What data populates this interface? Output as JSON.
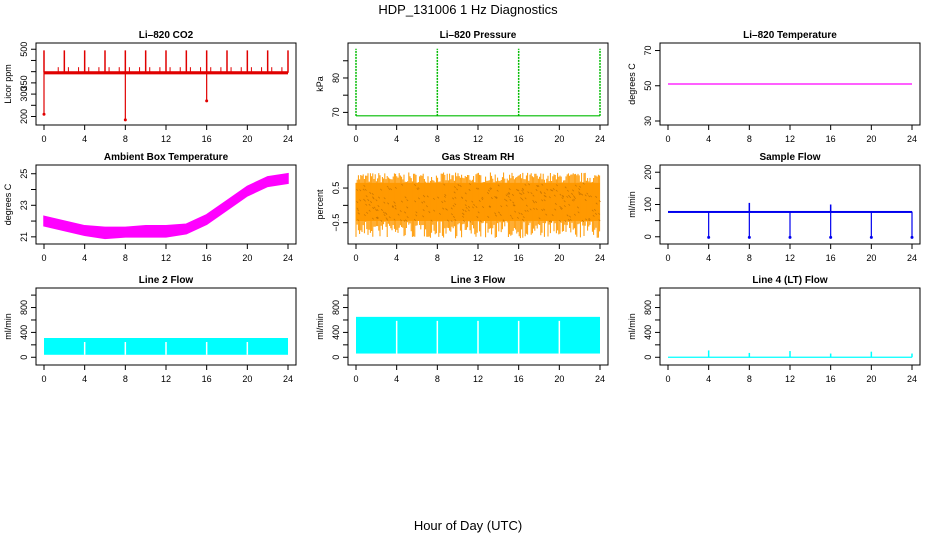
{
  "title": "HDP_131006  1 Hz Diagnostics",
  "xlabel": "Hour of Day (UTC)",
  "chart_data": [
    {
      "type": "line",
      "title": "Li–820 CO2",
      "ylabel": "Licor ppm",
      "xlim": [
        0,
        24
      ],
      "ylim": [
        180,
        510
      ],
      "xticks": [
        0,
        4,
        8,
        12,
        16,
        20,
        24
      ],
      "yticks": [
        200,
        250,
        300,
        350,
        400,
        450,
        500
      ],
      "ytick_labels": [
        "200",
        "",
        "300",
        "350",
        "",
        "",
        "500"
      ],
      "color": "#e00000",
      "baseline": 395,
      "noise": 14,
      "spikes_up": [
        0,
        2,
        4,
        6,
        8,
        10,
        12,
        14,
        16,
        18,
        20,
        22,
        24
      ],
      "spike_up_value": 495,
      "spikes_down": [
        [
          0,
          210
        ],
        [
          8,
          185
        ],
        [
          16,
          270
        ]
      ],
      "grid": false
    },
    {
      "type": "line",
      "title": "Li–820 Pressure",
      "ylabel": "kPa",
      "xlim": [
        0,
        24
      ],
      "ylim": [
        67.5,
        89
      ],
      "xticks": [
        0,
        4,
        8,
        12,
        16,
        20,
        24
      ],
      "yticks": [
        70,
        75,
        80,
        85
      ],
      "ytick_labels": [
        "70",
        "",
        "80",
        ""
      ],
      "color": "#00bb00",
      "baseline": 69.0,
      "spikes_up": [
        0,
        8,
        16,
        24
      ],
      "spike_up_value": 88.5,
      "grid": false
    },
    {
      "type": "line",
      "title": "Li–820 Temperature",
      "ylabel": "degrees C",
      "xlim": [
        0,
        24
      ],
      "ylim": [
        30,
        72
      ],
      "xticks": [
        0,
        4,
        8,
        12,
        16,
        20,
        24
      ],
      "yticks": [
        30,
        50,
        70
      ],
      "ytick_labels": [
        "30",
        "50",
        "70"
      ],
      "color": "#ff00ff",
      "baseline": 51,
      "grid": false
    },
    {
      "type": "area",
      "title": "Ambient Box Temperature",
      "ylabel": "degrees C",
      "xlim": [
        0,
        24
      ],
      "ylim": [
        20.8,
        25.3
      ],
      "xticks": [
        0,
        4,
        8,
        12,
        16,
        20,
        24
      ],
      "yticks": [
        21,
        22,
        23,
        24,
        25
      ],
      "ytick_labels": [
        "21",
        "",
        "23",
        "",
        "25"
      ],
      "color": "#ff00ff",
      "x": [
        0,
        2,
        4,
        6,
        8,
        10,
        12,
        14,
        16,
        18,
        20,
        22,
        24
      ],
      "upper": [
        22.3,
        22.0,
        21.7,
        21.6,
        21.6,
        21.7,
        21.7,
        21.8,
        22.4,
        23.3,
        24.2,
        24.8,
        25.0
      ],
      "lower": [
        21.7,
        21.4,
        21.1,
        20.9,
        21.0,
        21.0,
        21.0,
        21.2,
        21.8,
        22.7,
        23.6,
        24.2,
        24.4
      ],
      "grid": false
    },
    {
      "type": "area",
      "title": "Gas Stream RH",
      "ylabel": "percent",
      "xlim": [
        0,
        24
      ],
      "ylim": [
        -1.0,
        1.05
      ],
      "xticks": [
        0,
        4,
        8,
        12,
        16,
        20,
        24
      ],
      "yticks": [
        -0.5,
        0,
        0.5
      ],
      "ytick_labels": [
        "−0.5",
        "",
        "0.5"
      ],
      "color": "#ff9900",
      "band": [
        -0.45,
        0.65
      ],
      "extreme": [
        -0.95,
        0.95
      ],
      "grid": false
    },
    {
      "type": "line",
      "title": "Sample Flow",
      "ylabel": "ml/min",
      "xlim": [
        0,
        24
      ],
      "ylim": [
        -10,
        210
      ],
      "xticks": [
        0,
        4,
        8,
        12,
        16,
        20,
        24
      ],
      "yticks": [
        0,
        50,
        100,
        150,
        200
      ],
      "ytick_labels": [
        "0",
        "",
        "100",
        "",
        "200"
      ],
      "color": "#0000ee",
      "baseline": 78,
      "noise": 4,
      "spikes_down": [
        [
          4,
          -2
        ],
        [
          8,
          -2
        ],
        [
          12,
          -2
        ],
        [
          16,
          -2
        ],
        [
          20,
          -2
        ],
        [
          24,
          -2
        ]
      ],
      "spikes_up": [
        [
          8,
          105
        ],
        [
          16,
          100
        ]
      ],
      "grid": false
    },
    {
      "type": "area",
      "title": "Line 2 Flow",
      "ylabel": "ml/min",
      "xlim": [
        0,
        24
      ],
      "ylim": [
        -60,
        1050
      ],
      "xticks": [
        0,
        4,
        8,
        12,
        16,
        20,
        24
      ],
      "yticks": [
        0,
        200,
        400,
        600,
        800,
        1000
      ],
      "ytick_labels": [
        "0",
        "",
        "400",
        "",
        "800",
        ""
      ],
      "color": "#00ffff",
      "band": [
        40,
        310
      ],
      "gaps": [
        4,
        8,
        12,
        16,
        20
      ],
      "grid": false
    },
    {
      "type": "area",
      "title": "Line 3 Flow",
      "ylabel": "ml/min",
      "xlim": [
        0,
        24
      ],
      "ylim": [
        -60,
        1050
      ],
      "xticks": [
        0,
        4,
        8,
        12,
        16,
        20,
        24
      ],
      "yticks": [
        0,
        200,
        400,
        600,
        800,
        1000
      ],
      "ytick_labels": [
        "0",
        "",
        "400",
        "",
        "800",
        ""
      ],
      "color": "#00ffff",
      "band": [
        60,
        650
      ],
      "gaps": [
        4,
        8,
        12,
        16,
        20
      ],
      "grid": false
    },
    {
      "type": "line",
      "title": "Line 4 (LT) Flow",
      "ylabel": "ml/min",
      "xlim": [
        0,
        24
      ],
      "ylim": [
        -60,
        1050
      ],
      "xticks": [
        0,
        4,
        8,
        12,
        16,
        20,
        24
      ],
      "yticks": [
        0,
        200,
        400,
        600,
        800,
        1000
      ],
      "ytick_labels": [
        "0",
        "",
        "400",
        "",
        "800",
        ""
      ],
      "color": "#00ffff",
      "baseline": 0,
      "spikes_up": [
        [
          4,
          110
        ],
        [
          8,
          70
        ],
        [
          12,
          100
        ],
        [
          16,
          60
        ],
        [
          20,
          90
        ],
        [
          24,
          60
        ]
      ],
      "grid": false
    }
  ]
}
